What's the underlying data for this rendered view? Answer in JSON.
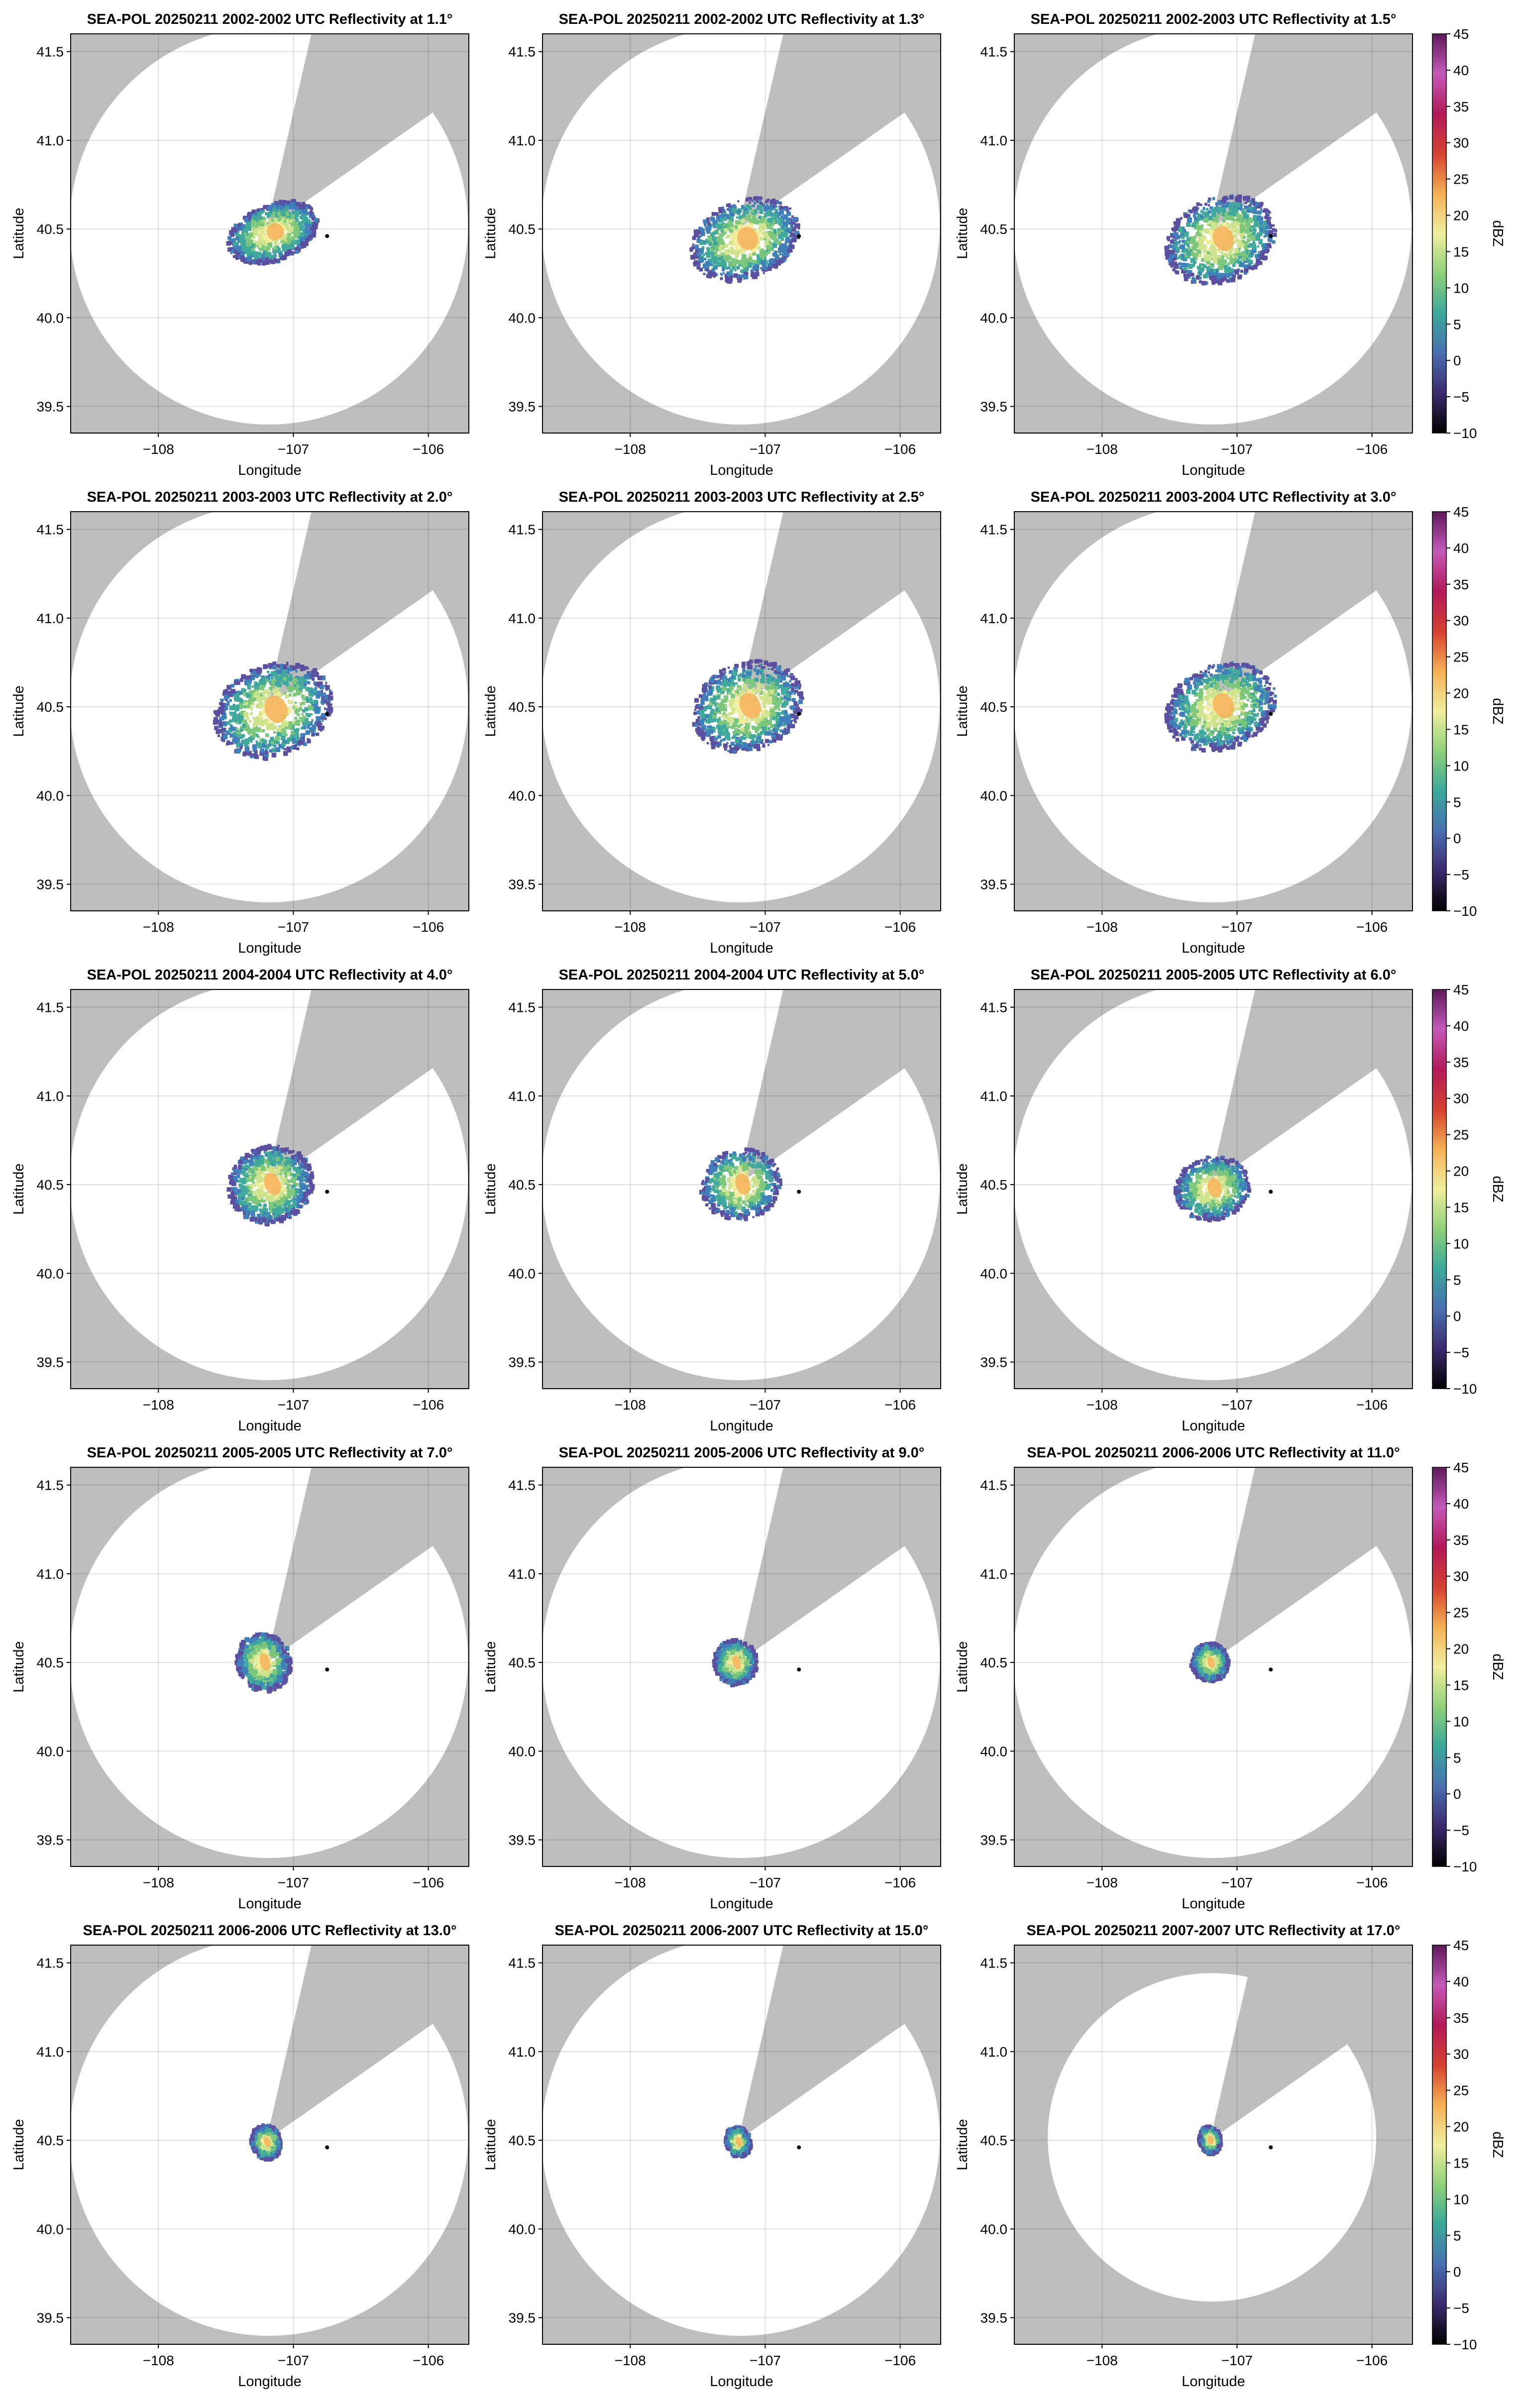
{
  "figure": {
    "colorbar_label": "dBZ",
    "colorbar_ticks": [
      "45",
      "40",
      "35",
      "30",
      "25",
      "20",
      "15",
      "10",
      "5",
      "0",
      "−5",
      "−10"
    ],
    "colormap_stops": [
      "#000000",
      "#3b2a6e",
      "#4a6fb0",
      "#3aa89a",
      "#8fd17a",
      "#f0ee9e",
      "#f5b054",
      "#d6402f",
      "#b21a5a",
      "#c45ab8",
      "#5e1a5a"
    ],
    "radar_marker_color": "#000000",
    "outside_color": "#bebebe",
    "echo_palette": [
      "#5b4fa0",
      "#3f7fba",
      "#41a89c",
      "#7dc77c",
      "#cde38e",
      "#f3ec9a"
    ]
  },
  "chart_data": [
    {
      "type": "heatmap",
      "title": "SEA-POL 20250211 2002-2002 UTC Reflectivity at 1.1°",
      "xlabel": "Longitude",
      "ylabel": "Latitude",
      "xlim": [
        -108.65,
        -105.7
      ],
      "ylim": [
        39.35,
        41.6
      ],
      "xticks": [
        -108,
        -107,
        -106
      ],
      "xtick_labels": [
        "−108",
        "−107",
        "−106"
      ],
      "yticks": [
        39.5,
        40.0,
        40.5,
        41.0,
        41.5
      ],
      "ytick_labels": [
        "39.5",
        "40.0",
        "40.5",
        "41.0",
        "41.5"
      ],
      "grid": true,
      "colorbar": false,
      "radar_location": [
        -106.75,
        40.46
      ],
      "echo_center": [
        -107.15,
        40.48
      ],
      "echo_extent": [
        0.35,
        0.16
      ],
      "echo_style": "streak"
    },
    {
      "type": "heatmap",
      "title": "SEA-POL 20250211 2002-2002 UTC Reflectivity at 1.3°",
      "xlabel": "Longitude",
      "ylabel": "Latitude",
      "xlim": [
        -108.65,
        -105.7
      ],
      "ylim": [
        39.35,
        41.6
      ],
      "xticks": [
        -108,
        -107,
        -106
      ],
      "xtick_labels": [
        "−108",
        "−107",
        "−106"
      ],
      "yticks": [
        39.5,
        40.0,
        40.5,
        41.0,
        41.5
      ],
      "ytick_labels": [
        "39.5",
        "40.0",
        "40.5",
        "41.0",
        "41.5"
      ],
      "grid": true,
      "colorbar": false,
      "radar_location": [
        -106.75,
        40.46
      ],
      "echo_center": [
        -107.15,
        40.44
      ],
      "echo_extent": [
        0.42,
        0.22
      ],
      "echo_style": "streak"
    },
    {
      "type": "heatmap",
      "title": "SEA-POL 20250211 2002-2003 UTC Reflectivity at 1.5°",
      "xlabel": "Longitude",
      "ylabel": "Latitude",
      "xlim": [
        -108.65,
        -105.7
      ],
      "ylim": [
        39.35,
        41.6
      ],
      "xticks": [
        -108,
        -107,
        -106
      ],
      "xtick_labels": [
        "−108",
        "−107",
        "−106"
      ],
      "yticks": [
        39.5,
        40.0,
        40.5,
        41.0,
        41.5
      ],
      "ytick_labels": [
        "39.5",
        "40.0",
        "40.5",
        "41.0",
        "41.5"
      ],
      "grid": true,
      "colorbar": true,
      "radar_location": [
        -106.75,
        40.46
      ],
      "echo_center": [
        -107.12,
        40.44
      ],
      "echo_extent": [
        0.42,
        0.24
      ],
      "echo_style": "streak"
    },
    {
      "type": "heatmap",
      "title": "SEA-POL 20250211 2003-2003 UTC Reflectivity at 2.0°",
      "xlabel": "Longitude",
      "ylabel": "Latitude",
      "xlim": [
        -108.65,
        -105.7
      ],
      "ylim": [
        39.35,
        41.6
      ],
      "xticks": [
        -108,
        -107,
        -106
      ],
      "xtick_labels": [
        "−108",
        "−107",
        "−106"
      ],
      "yticks": [
        39.5,
        40.0,
        40.5,
        41.0,
        41.5
      ],
      "ytick_labels": [
        "39.5",
        "40.0",
        "40.5",
        "41.0",
        "41.5"
      ],
      "grid": true,
      "colorbar": false,
      "radar_location": [
        -106.75,
        40.46
      ],
      "echo_center": [
        -107.15,
        40.48
      ],
      "echo_extent": [
        0.45,
        0.26
      ],
      "echo_style": "streak"
    },
    {
      "type": "heatmap",
      "title": "SEA-POL 20250211 2003-2003 UTC Reflectivity at 2.5°",
      "xlabel": "Longitude",
      "ylabel": "Latitude",
      "xlim": [
        -108.65,
        -105.7
      ],
      "ylim": [
        39.35,
        41.6
      ],
      "xticks": [
        -108,
        -107,
        -106
      ],
      "xtick_labels": [
        "−108",
        "−107",
        "−106"
      ],
      "yticks": [
        39.5,
        40.0,
        40.5,
        41.0,
        41.5
      ],
      "ytick_labels": [
        "39.5",
        "40.0",
        "40.5",
        "41.0",
        "41.5"
      ],
      "grid": true,
      "colorbar": false,
      "radar_location": [
        -106.75,
        40.46
      ],
      "echo_center": [
        -107.13,
        40.5
      ],
      "echo_extent": [
        0.42,
        0.25
      ],
      "echo_style": "streak"
    },
    {
      "type": "heatmap",
      "title": "SEA-POL 20250211 2003-2004 UTC Reflectivity at 3.0°",
      "xlabel": "Longitude",
      "ylabel": "Latitude",
      "xlim": [
        -108.65,
        -105.7
      ],
      "ylim": [
        39.35,
        41.6
      ],
      "xticks": [
        -108,
        -107,
        -106
      ],
      "xtick_labels": [
        "−108",
        "−107",
        "−106"
      ],
      "yticks": [
        39.5,
        40.0,
        40.5,
        41.0,
        41.5
      ],
      "ytick_labels": [
        "39.5",
        "40.0",
        "40.5",
        "41.0",
        "41.5"
      ],
      "grid": true,
      "colorbar": true,
      "radar_location": [
        -106.75,
        40.46
      ],
      "echo_center": [
        -107.12,
        40.5
      ],
      "echo_extent": [
        0.42,
        0.24
      ],
      "echo_style": "streak"
    },
    {
      "type": "heatmap",
      "title": "SEA-POL 20250211 2004-2004 UTC Reflectivity at 4.0°",
      "xlabel": "Longitude",
      "ylabel": "Latitude",
      "xlim": [
        -108.65,
        -105.7
      ],
      "ylim": [
        39.35,
        41.6
      ],
      "xticks": [
        -108,
        -107,
        -106
      ],
      "xtick_labels": [
        "−108",
        "−107",
        "−106"
      ],
      "yticks": [
        39.5,
        40.0,
        40.5,
        41.0,
        41.5
      ],
      "ytick_labels": [
        "39.5",
        "40.0",
        "40.5",
        "41.0",
        "41.5"
      ],
      "grid": true,
      "colorbar": false,
      "radar_location": [
        -106.75,
        40.46
      ],
      "echo_center": [
        -107.17,
        40.5
      ],
      "echo_extent": [
        0.32,
        0.22
      ],
      "echo_style": "streak"
    },
    {
      "type": "heatmap",
      "title": "SEA-POL 20250211 2004-2004 UTC Reflectivity at 5.0°",
      "xlabel": "Longitude",
      "ylabel": "Latitude",
      "xlim": [
        -108.65,
        -105.7
      ],
      "ylim": [
        39.35,
        41.6
      ],
      "xticks": [
        -108,
        -107,
        -106
      ],
      "xtick_labels": [
        "−108",
        "−107",
        "−106"
      ],
      "yticks": [
        39.5,
        40.0,
        40.5,
        41.0,
        41.5
      ],
      "ytick_labels": [
        "39.5",
        "40.0",
        "40.5",
        "41.0",
        "41.5"
      ],
      "grid": true,
      "colorbar": false,
      "radar_location": [
        -106.75,
        40.46
      ],
      "echo_center": [
        -107.18,
        40.5
      ],
      "echo_extent": [
        0.3,
        0.2
      ],
      "echo_style": "blob"
    },
    {
      "type": "heatmap",
      "title": "SEA-POL 20250211 2005-2005 UTC Reflectivity at 6.0°",
      "xlabel": "Longitude",
      "ylabel": "Latitude",
      "xlim": [
        -108.65,
        -105.7
      ],
      "ylim": [
        39.35,
        41.6
      ],
      "xticks": [
        -108,
        -107,
        -106
      ],
      "xtick_labels": [
        "−108",
        "−107",
        "−106"
      ],
      "yticks": [
        39.5,
        40.0,
        40.5,
        41.0,
        41.5
      ],
      "ytick_labels": [
        "39.5",
        "40.0",
        "40.5",
        "41.0",
        "41.5"
      ],
      "grid": true,
      "colorbar": true,
      "radar_location": [
        -106.75,
        40.46
      ],
      "echo_center": [
        -107.18,
        40.48
      ],
      "echo_extent": [
        0.28,
        0.18
      ],
      "echo_style": "blob"
    },
    {
      "type": "heatmap",
      "title": "SEA-POL 20250211 2005-2005 UTC Reflectivity at 7.0°",
      "xlabel": "Longitude",
      "ylabel": "Latitude",
      "xlim": [
        -108.65,
        -105.7
      ],
      "ylim": [
        39.35,
        41.6
      ],
      "xticks": [
        -108,
        -107,
        -106
      ],
      "xtick_labels": [
        "−108",
        "−107",
        "−106"
      ],
      "yticks": [
        39.5,
        40.0,
        40.5,
        41.0,
        41.5
      ],
      "ytick_labels": [
        "39.5",
        "40.0",
        "40.5",
        "41.0",
        "41.5"
      ],
      "grid": true,
      "colorbar": false,
      "radar_location": [
        -106.75,
        40.46
      ],
      "echo_center": [
        -107.22,
        40.5
      ],
      "echo_extent": [
        0.2,
        0.17
      ],
      "echo_style": "blob"
    },
    {
      "type": "heatmap",
      "title": "SEA-POL 20250211 2005-2006 UTC Reflectivity at 9.0°",
      "xlabel": "Longitude",
      "ylabel": "Latitude",
      "xlim": [
        -108.65,
        -105.7
      ],
      "ylim": [
        39.35,
        41.6
      ],
      "xticks": [
        -108,
        -107,
        -106
      ],
      "xtick_labels": [
        "−108",
        "−107",
        "−106"
      ],
      "yticks": [
        39.5,
        40.0,
        40.5,
        41.0,
        41.5
      ],
      "ytick_labels": [
        "39.5",
        "40.0",
        "40.5",
        "41.0",
        "41.5"
      ],
      "grid": true,
      "colorbar": false,
      "radar_location": [
        -106.75,
        40.46
      ],
      "echo_center": [
        -107.22,
        40.5
      ],
      "echo_extent": [
        0.16,
        0.13
      ],
      "echo_style": "blob"
    },
    {
      "type": "heatmap",
      "title": "SEA-POL 20250211 2006-2006 UTC Reflectivity at 11.0°",
      "xlabel": "Longitude",
      "ylabel": "Latitude",
      "xlim": [
        -108.65,
        -105.7
      ],
      "ylim": [
        39.35,
        41.6
      ],
      "xticks": [
        -108,
        -107,
        -106
      ],
      "xtick_labels": [
        "−108",
        "−107",
        "−106"
      ],
      "yticks": [
        39.5,
        40.0,
        40.5,
        41.0,
        41.5
      ],
      "ytick_labels": [
        "39.5",
        "40.0",
        "40.5",
        "41.0",
        "41.5"
      ],
      "grid": true,
      "colorbar": true,
      "radar_location": [
        -106.75,
        40.46
      ],
      "echo_center": [
        -107.2,
        40.5
      ],
      "echo_extent": [
        0.14,
        0.11
      ],
      "echo_style": "blob"
    },
    {
      "type": "heatmap",
      "title": "SEA-POL 20250211 2006-2006 UTC Reflectivity at 13.0°",
      "xlabel": "Longitude",
      "ylabel": "Latitude",
      "xlim": [
        -108.65,
        -105.7
      ],
      "ylim": [
        39.35,
        41.6
      ],
      "xticks": [
        -108,
        -107,
        -106
      ],
      "xtick_labels": [
        "−108",
        "−107",
        "−106"
      ],
      "yticks": [
        39.5,
        40.0,
        40.5,
        41.0,
        41.5
      ],
      "ytick_labels": [
        "39.5",
        "40.0",
        "40.5",
        "41.0",
        "41.5"
      ],
      "grid": true,
      "colorbar": false,
      "radar_location": [
        -106.75,
        40.46
      ],
      "echo_center": [
        -107.2,
        40.49
      ],
      "echo_extent": [
        0.11,
        0.1
      ],
      "echo_style": "blob"
    },
    {
      "type": "heatmap",
      "title": "SEA-POL 20250211 2006-2007 UTC Reflectivity at 15.0°",
      "xlabel": "Longitude",
      "ylabel": "Latitude",
      "xlim": [
        -108.65,
        -105.7
      ],
      "ylim": [
        39.35,
        41.6
      ],
      "xticks": [
        -108,
        -107,
        -106
      ],
      "xtick_labels": [
        "−108",
        "−107",
        "−106"
      ],
      "yticks": [
        39.5,
        40.0,
        40.5,
        41.0,
        41.5
      ],
      "ytick_labels": [
        "39.5",
        "40.0",
        "40.5",
        "41.0",
        "41.5"
      ],
      "grid": true,
      "colorbar": false,
      "radar_location": [
        -106.75,
        40.46
      ],
      "echo_center": [
        -107.2,
        40.49
      ],
      "echo_extent": [
        0.09,
        0.09
      ],
      "echo_style": "blob"
    },
    {
      "type": "heatmap",
      "title": "SEA-POL 20250211 2007-2007 UTC Reflectivity at 17.0°",
      "xlabel": "Longitude",
      "ylabel": "Latitude",
      "xlim": [
        -108.65,
        -105.7
      ],
      "ylim": [
        39.35,
        41.6
      ],
      "xticks": [
        -108,
        -107,
        -106
      ],
      "xtick_labels": [
        "−108",
        "−107",
        "−106"
      ],
      "yticks": [
        39.5,
        40.0,
        40.5,
        41.0,
        41.5
      ],
      "ytick_labels": [
        "39.5",
        "40.0",
        "40.5",
        "41.0",
        "41.5"
      ],
      "grid": true,
      "colorbar": true,
      "radar_location": [
        -106.75,
        40.46
      ],
      "echo_center": [
        -107.2,
        40.5
      ],
      "echo_extent": [
        0.08,
        0.08
      ],
      "echo_style": "blob"
    }
  ]
}
